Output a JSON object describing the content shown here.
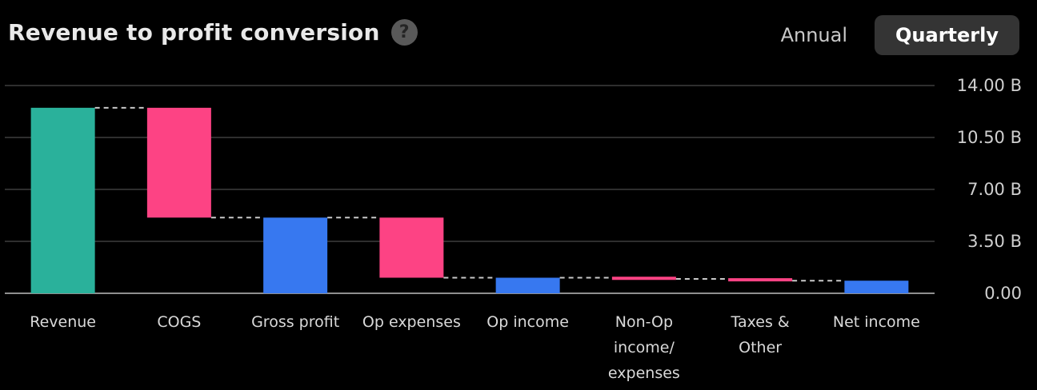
{
  "header": {
    "title": "Revenue to profit conversion",
    "help_glyph": "?",
    "toggle": {
      "annual_label": "Annual",
      "quarterly_label": "Quarterly",
      "selected": "Quarterly"
    }
  },
  "chart_data": {
    "type": "bar",
    "subtype": "waterfall",
    "title": "Revenue to profit conversion",
    "unit": "B (billions USD)",
    "period": "Quarterly",
    "grid": true,
    "legend": "none",
    "categories": [
      "Revenue",
      "COGS",
      "Gross profit",
      "Op expenses",
      "Op income",
      "Non-Op income/expenses",
      "Taxes & Other",
      "Net income"
    ],
    "category_label_lines": [
      [
        "Revenue"
      ],
      [
        "COGS"
      ],
      [
        "Gross profit"
      ],
      [
        "Op expenses"
      ],
      [
        "Op income"
      ],
      [
        "Non-Op",
        "income/",
        "expenses"
      ],
      [
        "Taxes &",
        "Other"
      ],
      [
        "Net income"
      ]
    ],
    "bars": [
      {
        "label": "Revenue",
        "kind": "total",
        "start": 0,
        "end": 12.5,
        "value": 12.5,
        "color": "teal"
      },
      {
        "label": "COGS",
        "kind": "decrease",
        "start": 12.5,
        "end": 5.1,
        "value": -7.4,
        "color": "pink"
      },
      {
        "label": "Gross profit",
        "kind": "total",
        "start": 0,
        "end": 5.1,
        "value": 5.1,
        "color": "blue"
      },
      {
        "label": "Op expenses",
        "kind": "decrease",
        "start": 5.1,
        "end": 1.05,
        "value": -4.05,
        "color": "pink"
      },
      {
        "label": "Op income",
        "kind": "total",
        "start": 0,
        "end": 1.05,
        "value": 1.05,
        "color": "blue"
      },
      {
        "label": "Non-Op income/expenses",
        "kind": "decrease",
        "start": 1.05,
        "end": 0.97,
        "value": -0.08,
        "color": "pink"
      },
      {
        "label": "Taxes & Other",
        "kind": "decrease",
        "start": 0.97,
        "end": 0.85,
        "value": -0.12,
        "color": "pink"
      },
      {
        "label": "Net income",
        "kind": "total",
        "start": 0,
        "end": 0.85,
        "value": 0.85,
        "color": "blue"
      }
    ],
    "y_axis": {
      "position": "right",
      "min": 0,
      "max": 14,
      "ticks": [
        {
          "value": 14,
          "label": "14.00 B"
        },
        {
          "value": 10.5,
          "label": "10.50 B"
        },
        {
          "value": 7,
          "label": "7.00 B"
        },
        {
          "value": 3.5,
          "label": "3.50 B"
        },
        {
          "value": 0,
          "label": "0.00"
        }
      ]
    },
    "colors": {
      "teal": "#2ab19b",
      "pink": "#fd4384",
      "blue": "#3778f0",
      "gridline": "#3d3d3d",
      "baseline": "#8f8f8f",
      "connector": "#c9c9c9",
      "background": "#000000",
      "selected_toggle_bg": "#343434"
    }
  }
}
